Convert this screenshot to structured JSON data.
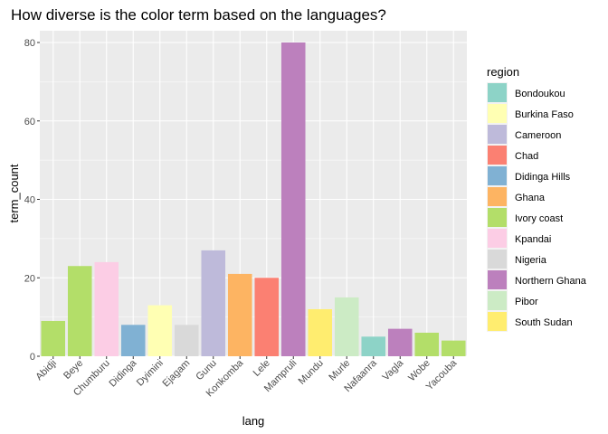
{
  "chart_data": {
    "type": "bar",
    "title": "How diverse is the color term based on the languages?",
    "xlabel": "lang",
    "ylabel": "term_count",
    "ylim": [
      0,
      83
    ],
    "yticks": [
      0,
      20,
      40,
      60,
      80
    ],
    "grid": true,
    "legend_position": "right",
    "legend_title": "region",
    "categories": [
      "Abidji",
      "Beye",
      "Chumburu",
      "Didinga",
      "Dyimini",
      "Ejagam",
      "Gunu",
      "Konkomba",
      "Lele",
      "Mampruli",
      "Mundu",
      "Murle",
      "Nafaanra",
      "Vagla",
      "Wobe",
      "Yacouba"
    ],
    "values": [
      9,
      23,
      24,
      8,
      13,
      8,
      27,
      21,
      20,
      80,
      12,
      15,
      5,
      7,
      6,
      4
    ],
    "bar_regions": [
      "Ivory coast",
      "Ivory coast",
      "Kpandai",
      "Didinga Hills",
      "Burkina Faso",
      "Nigeria",
      "Cameroon",
      "Ghana",
      "Chad",
      "Northern Ghana",
      "South Sudan",
      "Pibor",
      "Bondoukou",
      "Northern Ghana",
      "Ivory coast",
      "Ivory coast"
    ],
    "legend": [
      {
        "name": "Bondoukou",
        "color": "#8DD3C7"
      },
      {
        "name": "Burkina Faso",
        "color": "#FFFFB3"
      },
      {
        "name": "Cameroon",
        "color": "#BEBADA"
      },
      {
        "name": "Chad",
        "color": "#FB8072"
      },
      {
        "name": "Didinga Hills",
        "color": "#80B1D3"
      },
      {
        "name": "Ghana",
        "color": "#FDB462"
      },
      {
        "name": "Ivory coast",
        "color": "#B3DE69"
      },
      {
        "name": "Kpandai",
        "color": "#FCCDE5"
      },
      {
        "name": "Nigeria",
        "color": "#D9D9D9"
      },
      {
        "name": "Northern Ghana",
        "color": "#BC80BD"
      },
      {
        "name": "Pibor",
        "color": "#CCEBC5"
      },
      {
        "name": "South Sudan",
        "color": "#FFED6F"
      }
    ]
  }
}
